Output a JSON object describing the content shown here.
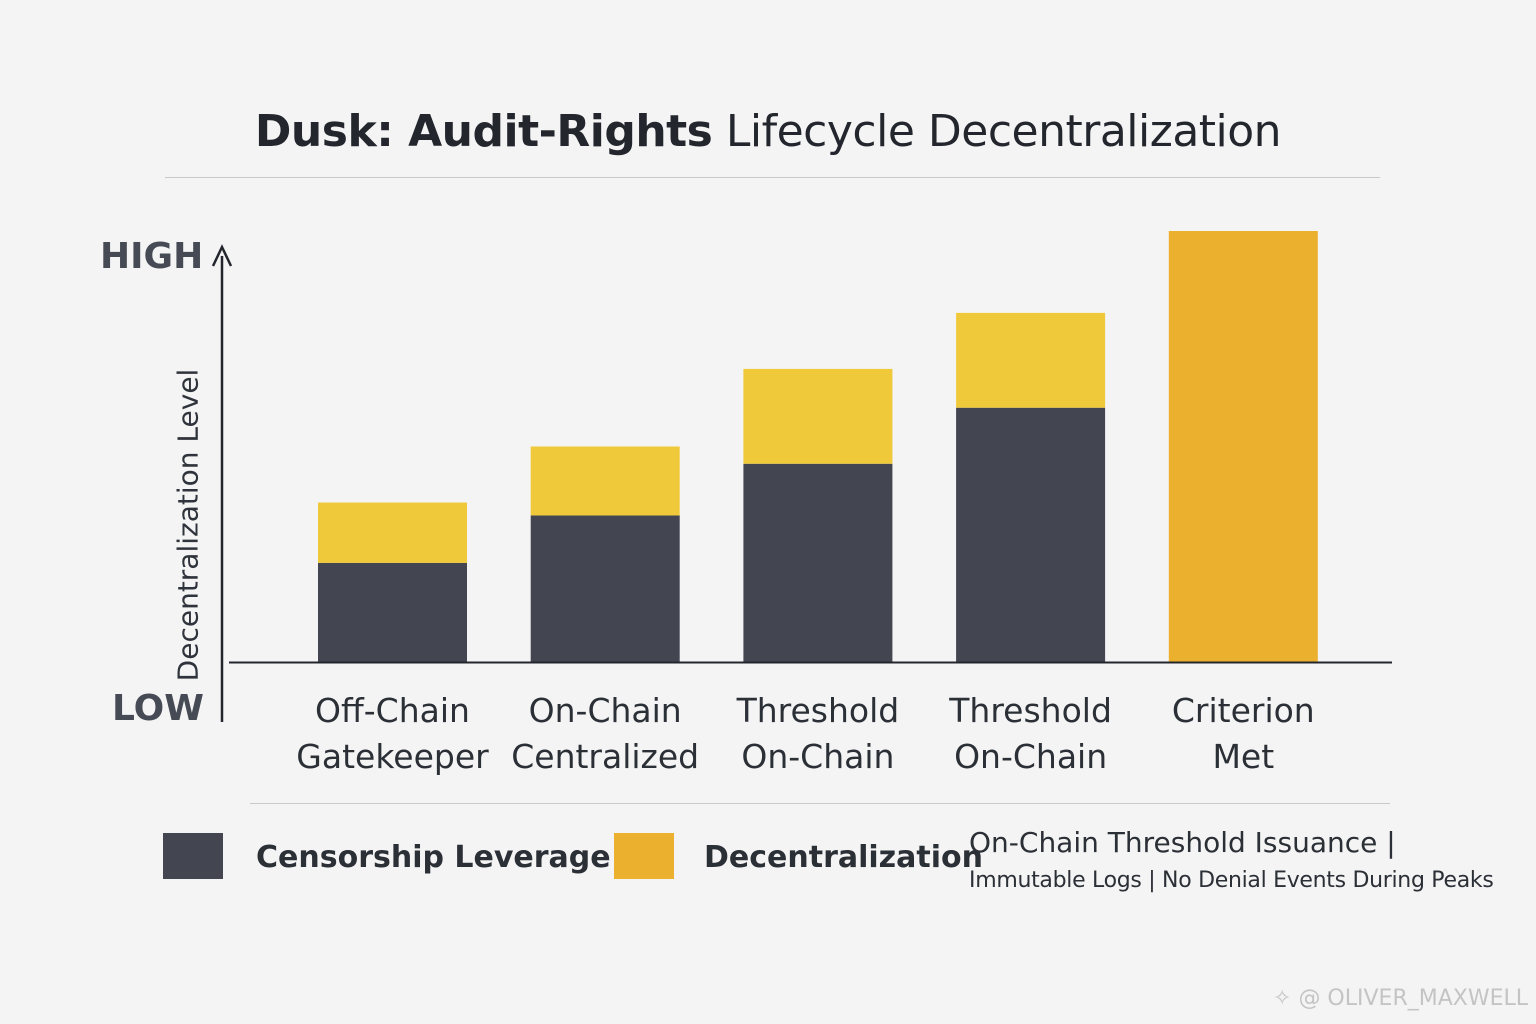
{
  "title_bold": "Dusk: Audit-Rights",
  "title_light": "Lifecycle Decentralization",
  "colors": {
    "censorship": "#434650",
    "decentralization": "#f0c93a",
    "criterion": "#ebb12e",
    "axis": "#23262d"
  },
  "chart_data": {
    "type": "bar",
    "stacked": true,
    "ylabel": "Decentralization Level",
    "y_high_label": "HIGH",
    "y_low_label": "LOW",
    "ylim": [
      0,
      100
    ],
    "categories": [
      [
        "Off-Chain",
        "Gatekeeper"
      ],
      [
        "On-Chain",
        "Centralized"
      ],
      [
        "Threshold",
        "On-Chain"
      ],
      [
        "Threshold",
        "On-Chain"
      ],
      [
        "Criterion",
        "Met"
      ]
    ],
    "series": [
      {
        "name": "Censorship Leverage",
        "values": [
          23,
          34,
          46,
          59,
          0
        ]
      },
      {
        "name": "Decentralization",
        "values": [
          14,
          16,
          22,
          22,
          100
        ]
      }
    ],
    "legend_position": "bottom"
  },
  "note_line1": "On-Chain Threshold Issuance  |",
  "note_line2": "Immutable Logs | No Denial Events During Peaks",
  "watermark": "@ OLIVER_MAXWELL"
}
